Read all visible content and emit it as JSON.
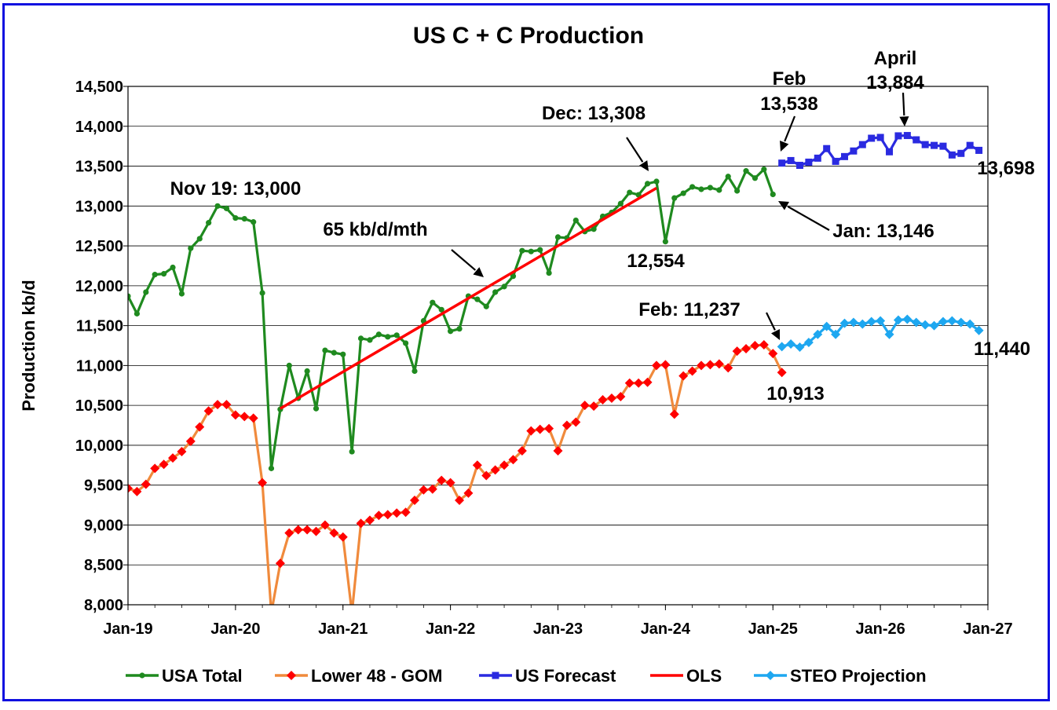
{
  "chart_data": {
    "type": "line",
    "title": "US C + C Production",
    "xlabel": "",
    "ylabel": "Production kb/d",
    "ylim": [
      8000,
      14500
    ],
    "ytick_step": 500,
    "xlim": [
      "2019-01",
      "2027-01"
    ],
    "x_tick_labels": [
      "Jan-19",
      "Jan-20",
      "Jan-21",
      "Jan-22",
      "Jan-23",
      "Jan-24",
      "Jan-25",
      "Jan-26",
      "Jan-27"
    ],
    "grid": true,
    "legend": "bottom",
    "colors": {
      "usa_total": "#1f8a1f",
      "lower48": "#f08a3c",
      "lower48_marker": "#ff0000",
      "forecast": "#2a2ae0",
      "ols": "#ff0000",
      "steo": "#1ea7f0",
      "border": "#1010e0"
    },
    "series": [
      {
        "name": "USA Total",
        "start": "2019-01",
        "marker": "circle",
        "values": [
          11870,
          11650,
          11920,
          12140,
          12150,
          12230,
          11900,
          12470,
          12590,
          12790,
          13000,
          12970,
          12850,
          12840,
          12800,
          11910,
          9710,
          10450,
          11000,
          10590,
          10930,
          10460,
          11190,
          11160,
          11140,
          9920,
          11340,
          11320,
          11390,
          11360,
          11380,
          11280,
          10930,
          11560,
          11790,
          11700,
          11430,
          11460,
          11870,
          11830,
          11740,
          11920,
          11990,
          12120,
          12440,
          12430,
          12450,
          12160,
          12610,
          12600,
          12820,
          12680,
          12710,
          12870,
          12920,
          13030,
          13170,
          13140,
          13280,
          13308,
          12554,
          13100,
          13160,
          13240,
          13210,
          13230,
          13200,
          13370,
          13190,
          13440,
          13350,
          13460,
          13146
        ]
      },
      {
        "name": "Lower 48 - GOM",
        "start": "2019-01",
        "marker": "diamond",
        "values": [
          9460,
          9420,
          9510,
          9710,
          9760,
          9840,
          9920,
          10050,
          10230,
          10430,
          10510,
          10510,
          10380,
          10360,
          10340,
          9530,
          7900,
          8520,
          8900,
          8940,
          8940,
          8920,
          9000,
          8900,
          8850,
          7900,
          9020,
          9060,
          9120,
          9130,
          9150,
          9160,
          9310,
          9440,
          9450,
          9560,
          9530,
          9310,
          9400,
          9750,
          9620,
          9690,
          9750,
          9820,
          9930,
          10180,
          10200,
          10210,
          9930,
          10250,
          10290,
          10500,
          10490,
          10570,
          10590,
          10610,
          10780,
          10780,
          10790,
          11000,
          11010,
          10390,
          10870,
          10930,
          11000,
          11010,
          11020,
          10970,
          11180,
          11210,
          11250,
          11260,
          11150,
          10913
        ]
      },
      {
        "name": "US Forecast",
        "start": "2025-02",
        "marker": "square",
        "values": [
          13538,
          13570,
          13510,
          13550,
          13600,
          13720,
          13560,
          13620,
          13690,
          13770,
          13850,
          13860,
          13680,
          13880,
          13884,
          13830,
          13770,
          13760,
          13750,
          13640,
          13660,
          13760,
          13698
        ]
      },
      {
        "name": "OLS",
        "start": "2020-06",
        "end": "2023-12",
        "marker": "none",
        "values": [
          10460,
          13225
        ]
      },
      {
        "name": "STEO Projection",
        "start": "2025-02",
        "marker": "diamond",
        "values": [
          11237,
          11270,
          11230,
          11290,
          11390,
          11490,
          11390,
          11530,
          11540,
          11520,
          11550,
          11560,
          11390,
          11570,
          11580,
          11540,
          11510,
          11500,
          11550,
          11560,
          11540,
          11520,
          11440
        ]
      }
    ],
    "annotations": [
      {
        "text": "Nov 19: 13,000"
      },
      {
        "text": "65 kb/d/mth"
      },
      {
        "text": "Dec: 13,308"
      },
      {
        "text": "12,554"
      },
      {
        "text": "Jan: 13,146"
      },
      {
        "text": "Feb"
      },
      {
        "text": "13,538"
      },
      {
        "text": "April"
      },
      {
        "text": "13,884"
      },
      {
        "text": "13,698"
      },
      {
        "text": "Feb: 11,237"
      },
      {
        "text": "11,440"
      },
      {
        "text": "10,913"
      }
    ]
  }
}
